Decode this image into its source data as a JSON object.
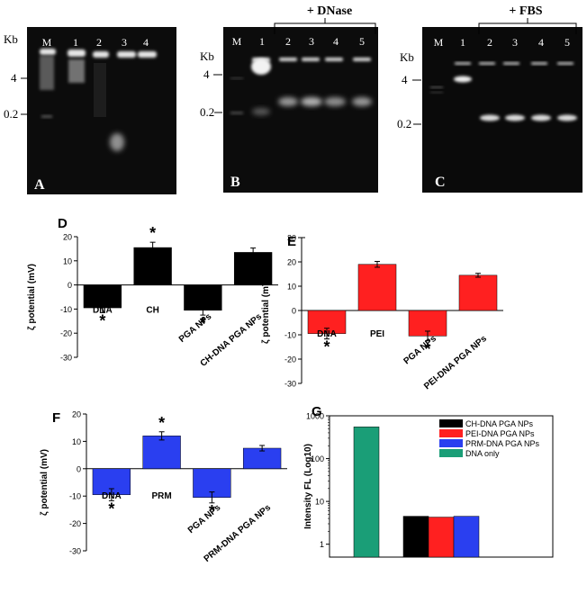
{
  "gels": {
    "A": {
      "panel_letter": "A",
      "kb_label": "Kb",
      "marker_labels": [
        "4",
        "0.2"
      ],
      "lane_labels": [
        "M",
        "1",
        "2",
        "3",
        "4"
      ],
      "bracket_label": ""
    },
    "B": {
      "panel_letter": "B",
      "kb_label": "Kb",
      "marker_labels": [
        "4",
        "0.2"
      ],
      "lane_labels": [
        "M",
        "1",
        "2",
        "3",
        "4",
        "5"
      ],
      "bracket_label": "+ DNase"
    },
    "C": {
      "panel_letter": "C",
      "kb_label": "Kb",
      "marker_labels": [
        "4",
        "0.2"
      ],
      "lane_labels": [
        "M",
        "1",
        "2",
        "3",
        "4",
        "5"
      ],
      "bracket_label": "+ FBS"
    }
  },
  "colors": {
    "D": "#000000",
    "E": "#ff2020",
    "F": "#2a3ff0",
    "G_ch": "#000000",
    "G_pei": "#ff2020",
    "G_prm": "#2a3ff0",
    "G_dna": "#1a9e77"
  },
  "chart_data": [
    {
      "id": "D",
      "type": "bar",
      "panel_letter": "D",
      "ylabel": "ζ potential (mV)",
      "ylim": [
        -30,
        20
      ],
      "yticks": [
        "20",
        "10",
        "0",
        "-10",
        "-20",
        "-30"
      ],
      "categories": [
        "DNA",
        "CH",
        "PGA NPs",
        "CH-DNA PGA NPs"
      ],
      "values": [
        -9.5,
        15.5,
        -10.5,
        13.5
      ],
      "errors": [
        2.0,
        2.2,
        2.0,
        1.8
      ],
      "significance": [
        "*",
        "*",
        "*",
        ""
      ]
    },
    {
      "id": "E",
      "type": "bar",
      "panel_letter": "E",
      "ylabel": "ζ potential (mV)",
      "ylim": [
        -30,
        30
      ],
      "yticks": [
        "30",
        "20",
        "10",
        "0",
        "-10",
        "-20",
        "-30"
      ],
      "categories": [
        "DNA",
        "PEI",
        "PGA NPs",
        "PEI-DNA PGA NPs"
      ],
      "values": [
        -9.5,
        19,
        -10.5,
        14.5
      ],
      "errors": [
        2.2,
        1.2,
        2.0,
        0.8
      ],
      "significance": [
        "*",
        "",
        "*",
        ""
      ]
    },
    {
      "id": "F",
      "type": "bar",
      "panel_letter": "F",
      "ylabel": "ζ potential (mV)",
      "ylim": [
        -30,
        20
      ],
      "yticks": [
        "20",
        "10",
        "0",
        "-10",
        "-20",
        "-30"
      ],
      "categories": [
        "DNA",
        "PRM",
        "PGA NPs",
        "PRM-DNA PGA NPs"
      ],
      "values": [
        -9.5,
        12,
        -10.5,
        7.5
      ],
      "errors": [
        2.2,
        1.5,
        2.0,
        1.0
      ],
      "significance": [
        "*",
        "*",
        "*",
        ""
      ]
    },
    {
      "id": "G",
      "type": "bar",
      "panel_letter": "G",
      "ylabel": "Intensity FL (Log10)",
      "yscale": "log",
      "ylim": [
        0.5,
        1000
      ],
      "yticks": [
        "1000",
        "100",
        "10",
        "1"
      ],
      "legend_position": "top-right",
      "series": [
        {
          "name": "CH-DNA PGA NPs",
          "value": 4.5
        },
        {
          "name": "PEI-DNA PGA NPs",
          "value": 4.3
        },
        {
          "name": "PRM-DNA PGA NPs",
          "value": 4.5
        },
        {
          "name": "DNA only",
          "value": 550
        }
      ]
    }
  ]
}
